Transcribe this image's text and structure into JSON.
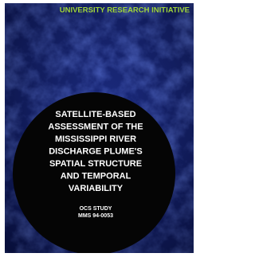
{
  "header": {
    "title": "UNIVERSITY RESEARCH INITIATIVE"
  },
  "title": {
    "lines": [
      "SATELLITE-BASED",
      "ASSESSMENT OF THE",
      "MISSISSIPPI RIVER",
      "DISCHARGE PLUME'S",
      "SPATIAL STRUCTURE",
      "AND TEMPORAL",
      "VARIABILITY"
    ]
  },
  "study": "OCS STUDY",
  "report_number": "MMS 94-0053"
}
